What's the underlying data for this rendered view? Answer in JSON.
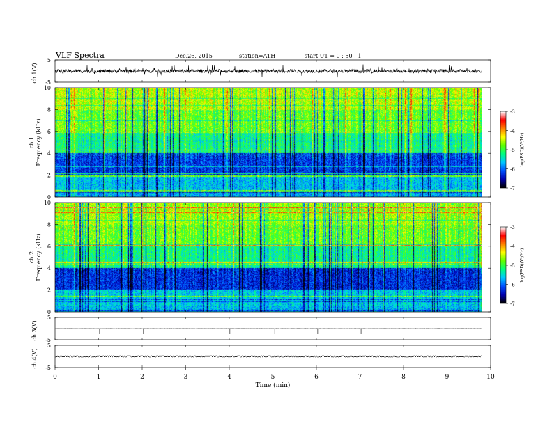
{
  "header": {
    "title": "VLF  Spectra",
    "date": "Dec.26, 2015",
    "station": "station=ATH",
    "start": "start  UT  =   0  : 50 : 1"
  },
  "colors": {
    "background": "#ffffff",
    "axis": "#000000",
    "colormap": [
      "#000000",
      "#0000b0",
      "#0050ff",
      "#00c8ff",
      "#00ff80",
      "#60ff00",
      "#ffff00",
      "#ff8000",
      "#ff0000",
      "#ffffff"
    ]
  },
  "chart_data": [
    {
      "type": "line",
      "panel": "ch1-waveform",
      "ylabel": "ch.1(V)",
      "ylim": [
        -5,
        5
      ],
      "yticks": [
        "5",
        "-5"
      ],
      "xlim": [
        0,
        10
      ],
      "series": [
        {
          "values_description_free": true,
          "mean": 0,
          "amplitude": 0.8
        }
      ]
    },
    {
      "type": "heatmap",
      "panel": "ch1-spectrogram",
      "ylabel": "ch.1\nFrequency (kHz)",
      "ylabel_line1": "ch.1",
      "ylabel_line2": "Frequency (kHz)",
      "ylim": [
        0,
        10
      ],
      "yticks": [
        "0",
        "2",
        "4",
        "6",
        "8",
        "10"
      ],
      "xlim": [
        0,
        10
      ],
      "colorbar": {
        "label": "log(PSD)(V²/Hz)",
        "range": [
          -7,
          -3
        ],
        "ticks": [
          "-3",
          "-4",
          "-5",
          "-6",
          "-7"
        ]
      },
      "band_levels": [
        {
          "f": [
            0,
            0.5
          ],
          "level": -5.6
        },
        {
          "f": [
            0.5,
            2
          ],
          "level": -5.5
        },
        {
          "f": [
            2,
            4
          ],
          "level": -6.1
        },
        {
          "f": [
            4,
            6
          ],
          "level": -5.0
        },
        {
          "f": [
            6,
            8
          ],
          "level": -4.5
        },
        {
          "f": [
            8,
            10
          ],
          "level": -4.2
        }
      ]
    },
    {
      "type": "heatmap",
      "panel": "ch2-spectrogram",
      "ylabel_line1": "ch.2",
      "ylabel_line2": "Frequency (kHz)",
      "ylim": [
        0,
        10
      ],
      "yticks": [
        "0",
        "2",
        "4",
        "6",
        "8",
        "10"
      ],
      "xlim": [
        0,
        10
      ],
      "colorbar": {
        "label": "log(PSD)(V²/Hz)",
        "range": [
          -7,
          -3
        ],
        "ticks": [
          "-3",
          "-4",
          "-5",
          "-6",
          "-7"
        ]
      },
      "band_levels": [
        {
          "f": [
            0,
            0.5
          ],
          "level": -5.5
        },
        {
          "f": [
            0.5,
            2
          ],
          "level": -5.4
        },
        {
          "f": [
            2,
            4
          ],
          "level": -6.2
        },
        {
          "f": [
            4,
            6
          ],
          "level": -5.0
        },
        {
          "f": [
            6,
            8
          ],
          "level": -4.5
        },
        {
          "f": [
            8,
            10
          ],
          "level": -4.3
        }
      ]
    },
    {
      "type": "line",
      "panel": "ch3-waveform",
      "ylabel": "ch.3(V)",
      "ylim": [
        -5,
        5
      ],
      "yticks": [
        "5",
        "-5"
      ],
      "xlim": [
        0,
        10
      ],
      "series": [
        {
          "mean": 0,
          "amplitude": 0.05
        }
      ]
    },
    {
      "type": "line",
      "panel": "ch4-waveform",
      "ylabel": "ch.4(V)",
      "ylim": [
        -5,
        5
      ],
      "yticks": [
        "5",
        "-5"
      ],
      "xlim": [
        0,
        10
      ],
      "series": [
        {
          "mean": 0,
          "amplitude": 0.3
        }
      ]
    }
  ],
  "xaxis": {
    "label": "Time  (min)",
    "ticks": [
      "0",
      "1",
      "2",
      "3",
      "4",
      "5",
      "6",
      "7",
      "8",
      "9",
      "10"
    ],
    "data_end_minutes": 9.8
  }
}
